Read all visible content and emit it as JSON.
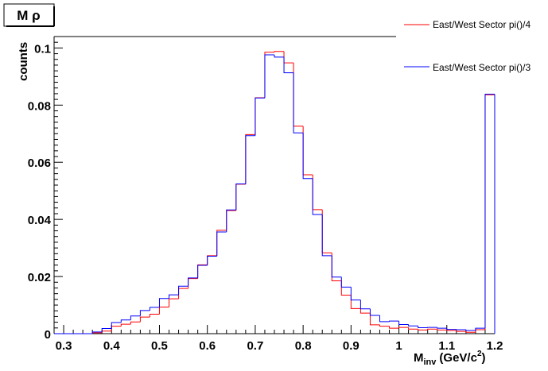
{
  "chart_data": {
    "type": "line",
    "title": "M ρ",
    "xlabel_main": "M",
    "xlabel_sub": "inv",
    "xlabel_unit": "(GeV/c",
    "xlabel_sup": "2",
    "xlabel_close": ")",
    "ylabel": "counts",
    "xlim": [
      0.28,
      1.2
    ],
    "ylim": [
      0,
      0.104
    ],
    "x_ticks": [
      "0.3",
      "0.4",
      "0.5",
      "0.6",
      "0.7",
      "0.8",
      "0.9",
      "1",
      "1.1",
      "1.2"
    ],
    "y_ticks": [
      "0",
      "0.02",
      "0.04",
      "0.06",
      "0.08",
      "0.1"
    ],
    "bin_edges": [
      0.28,
      0.3,
      0.32,
      0.34,
      0.36,
      0.38,
      0.4,
      0.42,
      0.44,
      0.46,
      0.48,
      0.5,
      0.52,
      0.54,
      0.56,
      0.58,
      0.6,
      0.62,
      0.64,
      0.66,
      0.68,
      0.7,
      0.72,
      0.74,
      0.76,
      0.78,
      0.8,
      0.82,
      0.84,
      0.86,
      0.88,
      0.9,
      0.92,
      0.94,
      0.96,
      0.98,
      1.0,
      1.02,
      1.04,
      1.06,
      1.08,
      1.1,
      1.12,
      1.14,
      1.16,
      1.18,
      1.2
    ],
    "series": [
      {
        "name": "East/West Sector pi()/4",
        "color": "#ff0000",
        "values": [
          0,
          0,
          0,
          0,
          0.0003,
          0.0009,
          0.0026,
          0.0033,
          0.0041,
          0.0058,
          0.0068,
          0.0093,
          0.0122,
          0.0158,
          0.0193,
          0.0241,
          0.0273,
          0.0362,
          0.0431,
          0.0523,
          0.0697,
          0.0826,
          0.0985,
          0.0988,
          0.0948,
          0.0726,
          0.0556,
          0.0434,
          0.0283,
          0.0185,
          0.0135,
          0.0088,
          0.0072,
          0.0031,
          0.0026,
          0.0019,
          0.0022,
          0.0016,
          0.0013,
          0.0016,
          0.0013,
          0.0011,
          0.0008,
          0.0005,
          0.0014,
          0.0836
        ]
      },
      {
        "name": "East/West Sector pi()/3",
        "color": "#0000ff",
        "values": [
          0,
          0,
          0,
          0,
          0.0006,
          0.0018,
          0.0039,
          0.0048,
          0.0062,
          0.0081,
          0.0092,
          0.0123,
          0.0136,
          0.0166,
          0.0195,
          0.0239,
          0.0271,
          0.0356,
          0.0433,
          0.0524,
          0.0693,
          0.0825,
          0.0976,
          0.0968,
          0.0913,
          0.0703,
          0.0543,
          0.0417,
          0.0273,
          0.0198,
          0.0163,
          0.0118,
          0.0087,
          0.0064,
          0.0042,
          0.0044,
          0.0032,
          0.0027,
          0.0021,
          0.0022,
          0.0019,
          0.0015,
          0.0014,
          0.0011,
          0.0019,
          0.0838
        ]
      }
    ],
    "legend_position": "top-right",
    "grid": false
  }
}
